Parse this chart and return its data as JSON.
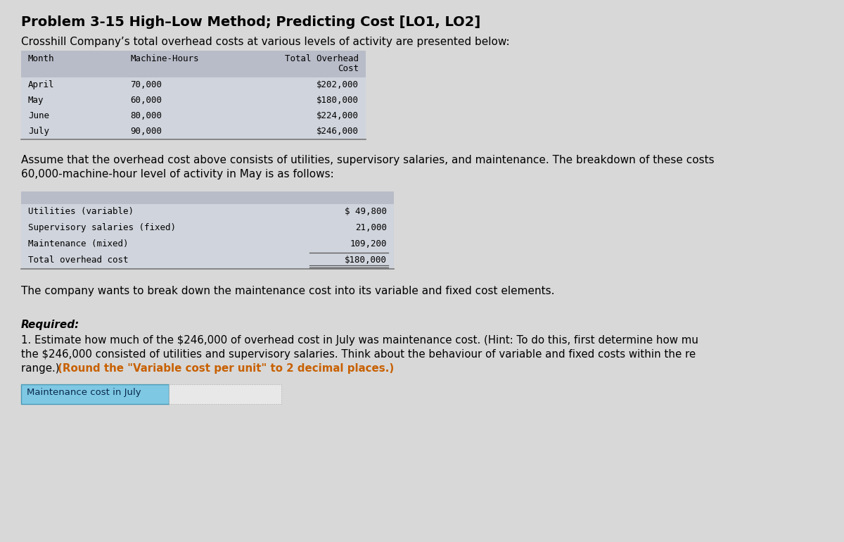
{
  "title": "Problem 3-15 High–Low Method; Predicting Cost [LO1, LO2]",
  "intro_text": "Crosshill Company’s total overhead costs at various levels of activity are presented below:",
  "table1_rows": [
    [
      "April",
      "70,000",
      "$202,000"
    ],
    [
      "May",
      "60,000",
      "$180,000"
    ],
    [
      "June",
      "80,000",
      "$224,000"
    ],
    [
      "July",
      "90,000",
      "$246,000"
    ]
  ],
  "assume_line1": "Assume that the overhead cost above consists of utilities, supervisory salaries, and maintenance. The breakdown of these costs",
  "assume_line2": "60,000-machine-hour level of activity in May is as follows:",
  "table2_rows": [
    [
      "Utilities (variable)",
      "$ 49,800"
    ],
    [
      "Supervisory salaries (fixed)",
      "21,000"
    ],
    [
      "Maintenance (mixed)",
      "109,200"
    ]
  ],
  "table2_total_label": "Total overhead cost",
  "table2_total_value": "$180,000",
  "break_text": "The company wants to break down the maintenance cost into its variable and fixed cost elements.",
  "required_label": "Required:",
  "req_line1": "1. Estimate how much of the $246,000 of overhead cost in July was maintenance cost. (Hint: To do this, first determine how mu",
  "req_line2": "the $246,000 consisted of utilities and supervisory salaries. Think about the behaviour of variable and fixed costs within the re",
  "req_line3_normal": "range.) ",
  "req_line3_bold": "(Round the \"Variable cost per unit\" to 2 decimal places.)",
  "input_label": "Maintenance cost in July",
  "bg_color": "#d8d8d8",
  "table_bg": "#e0e0e8",
  "table_header_bg": "#b8bcc8",
  "table_row_bg": "#d0d4dc",
  "input_bg": "#7ec8e3",
  "bold_color": "#c86000",
  "font_mono": "monospace",
  "font_sans": "DejaVu Sans"
}
